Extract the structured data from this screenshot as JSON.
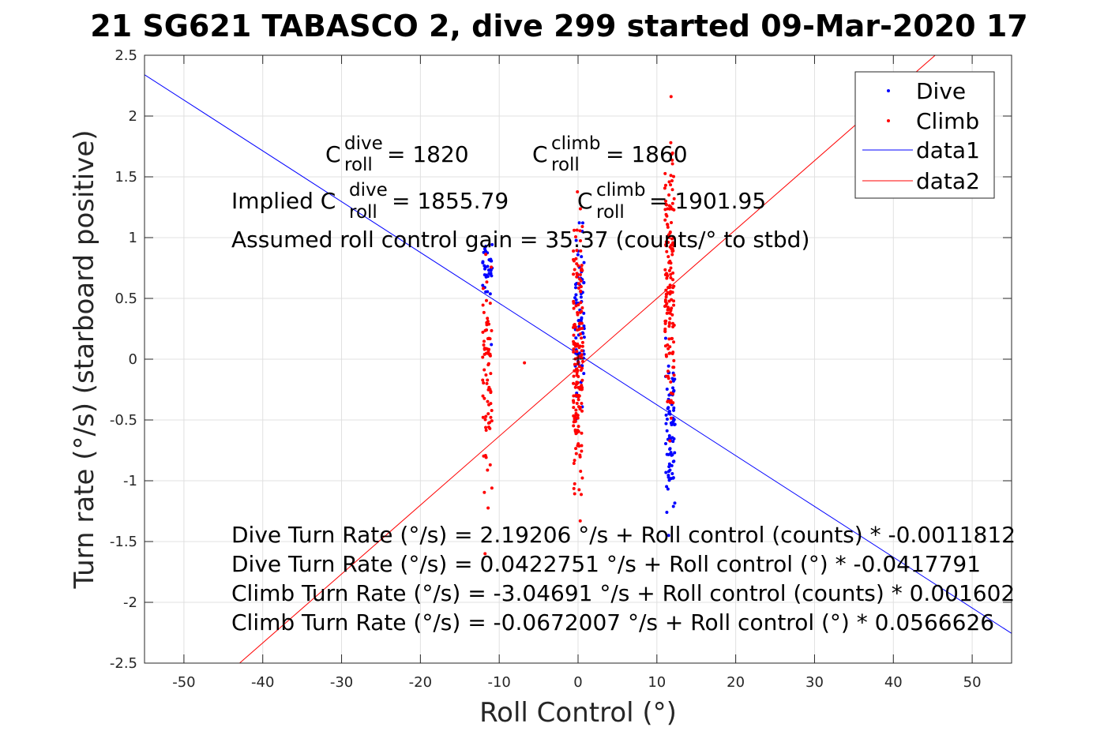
{
  "chart_data": {
    "type": "scatter",
    "title": "21 SG621 TABASCO 2, dive 299 started 09-Mar-2020 17",
    "xlabel": "Roll Control (°)",
    "ylabel": "Turn rate (°/s) (starboard positive)",
    "xlim": [
      -55,
      55
    ],
    "ylim": [
      -2.5,
      2.5
    ],
    "xticks": [
      -50,
      -40,
      -30,
      -20,
      -10,
      0,
      10,
      20,
      30,
      40,
      50
    ],
    "xtick_labels": [
      "-50",
      "-40",
      "-30",
      "-20",
      "-10",
      "0",
      "10",
      "20",
      "30",
      "40",
      "50"
    ],
    "yticks": [
      -2.5,
      -2,
      -1.5,
      -1,
      -0.5,
      0,
      0.5,
      1,
      1.5,
      2,
      2.5
    ],
    "ytick_labels": [
      "-2.5",
      "-2",
      "-1.5",
      "-1",
      "-0.5",
      "0",
      "0.5",
      "1",
      "1.5",
      "2",
      "2.5"
    ],
    "grid": true,
    "legend_position": "top-right",
    "legend": [
      "Dive",
      "Climb",
      "data1",
      "data2"
    ],
    "colors": {
      "dive": "#0000ff",
      "climb": "#ff0000",
      "axis": "#262626",
      "grid": "#e0e0e0"
    },
    "fit_lines": [
      {
        "name": "data1",
        "color": "#0000ff",
        "intercept": 0.0422751,
        "slope": -0.0417791
      },
      {
        "name": "data2",
        "color": "#ff0000",
        "intercept": -0.0672007,
        "slope": 0.0566626
      }
    ],
    "clusters": [
      {
        "series": "dive",
        "x": -11.5,
        "y_min": 0.35,
        "y_max": 1.1,
        "n": 34
      },
      {
        "series": "dive",
        "x": 0.2,
        "y_min": -0.7,
        "y_max": 1.45,
        "n": 70
      },
      {
        "series": "dive",
        "x": 11.7,
        "y_min": -1.45,
        "y_max": 0.2,
        "n": 80
      },
      {
        "series": "climb",
        "x": -11.5,
        "y_min": -1.3,
        "y_max": 1.1,
        "n": 75
      },
      {
        "series": "climb",
        "x": 0.0,
        "y_min": -1.5,
        "y_max": 1.5,
        "n": 170
      },
      {
        "series": "climb",
        "x": 11.6,
        "y_min": -0.9,
        "y_max": 2.15,
        "n": 150
      }
    ],
    "extra_points": [
      {
        "series": "climb",
        "x": -6.8,
        "y": -0.03
      },
      {
        "series": "dive",
        "x": -11.0,
        "y": 0.12
      },
      {
        "series": "climb",
        "x": 11.8,
        "y": 2.16
      },
      {
        "series": "dive",
        "x": 11.5,
        "y": -1.45
      },
      {
        "series": "climb",
        "x": -11.8,
        "y": -1.6
      }
    ],
    "annotations": {
      "c_dive_prefix": "C",
      "c_dive_sup": "dive",
      "c_dive_sub": "roll",
      "c_dive_value": " = 1820",
      "c_climb_prefix": "C",
      "c_climb_sup": "climb",
      "c_climb_sub": "roll",
      "c_climb_value": " = 1860",
      "implied_prefix": "Implied C",
      "implied_dive_sup": "dive",
      "implied_dive_sub": "roll",
      "implied_dive_value": " = 1855.79",
      "implied_climb_prefix": "C",
      "implied_climb_sup": "climb",
      "implied_climb_sub": "roll",
      "implied_climb_value": " = 1901.95",
      "gain": "Assumed roll control gain = 35.37 (counts/° to stbd)",
      "eq1": "Dive Turn Rate (°/s) = 2.19206 °/s + Roll control (counts) * -0.0011812",
      "eq2": "Dive Turn Rate (°/s) = 0.0422751 °/s + Roll control (°) * -0.0417791",
      "eq3": "Climb Turn Rate (°/s) = -3.04691 °/s + Roll control (counts) * 0.001602",
      "eq4": "Climb Turn Rate (°/s) = -0.0672007 °/s + Roll control (°) * 0.0566626"
    }
  }
}
